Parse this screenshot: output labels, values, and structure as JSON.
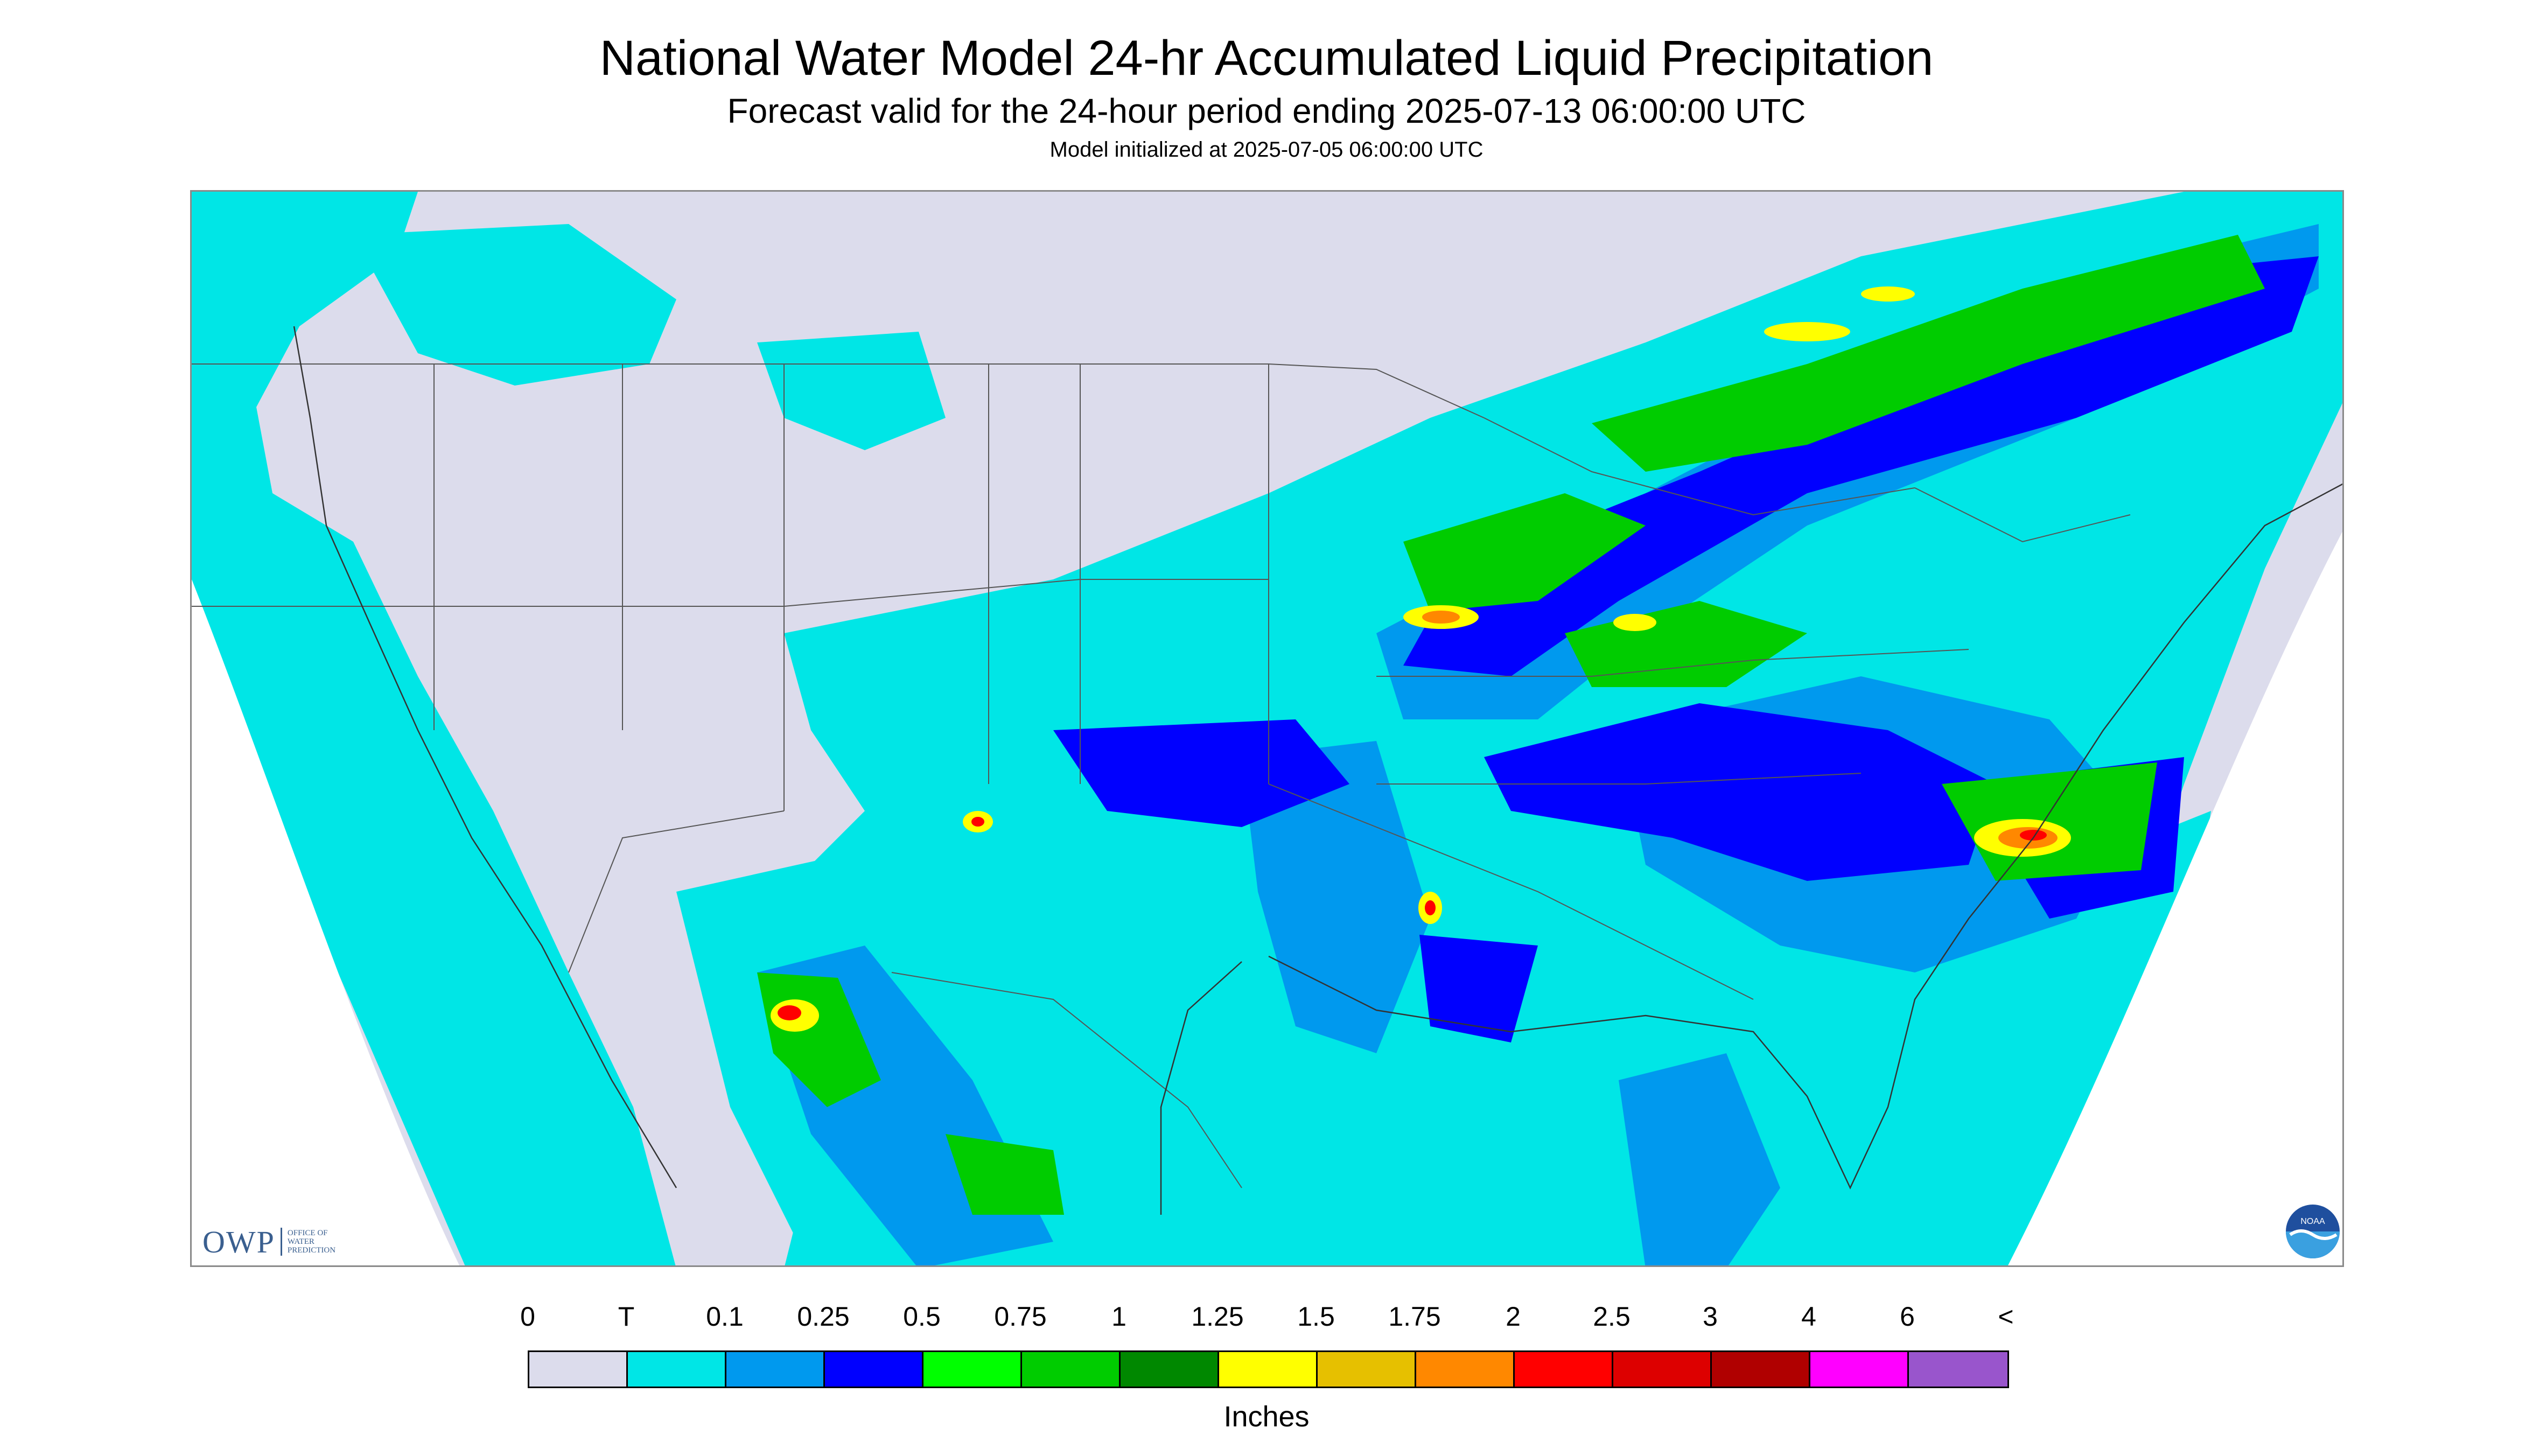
{
  "header": {
    "title": "National Water Model 24-hr Accumulated Liquid Precipitation",
    "subtitle": "Forecast valid for the 24-hour period ending 2025-07-13 06:00:00 UTC",
    "init": "Model initialized at 2025-07-05 06:00:00 UTC"
  },
  "map": {
    "background_color": "#dcdcec",
    "outside_color": "#ffffff"
  },
  "logos": {
    "owp_text": "OWP",
    "owp_sub_1": "Office of",
    "owp_sub_2": "Water",
    "owp_sub_3": "Prediction",
    "noaa_text": "NOAA"
  },
  "legend": {
    "tick_labels": [
      "0",
      "T",
      "0.1",
      "0.25",
      "0.5",
      "0.75",
      "1",
      "1.25",
      "1.5",
      "1.75",
      "2",
      "2.5",
      "3",
      "4",
      "6",
      "<"
    ],
    "colors": [
      "#dcdcec",
      "#00e6e6",
      "#0099ee",
      "#0000ff",
      "#00ff00",
      "#00cc00",
      "#008800",
      "#ffff00",
      "#e6c000",
      "#ff8800",
      "#ff0000",
      "#dd0000",
      "#b00000",
      "#ff00ff",
      "#9955cc"
    ],
    "unit": "Inches"
  }
}
